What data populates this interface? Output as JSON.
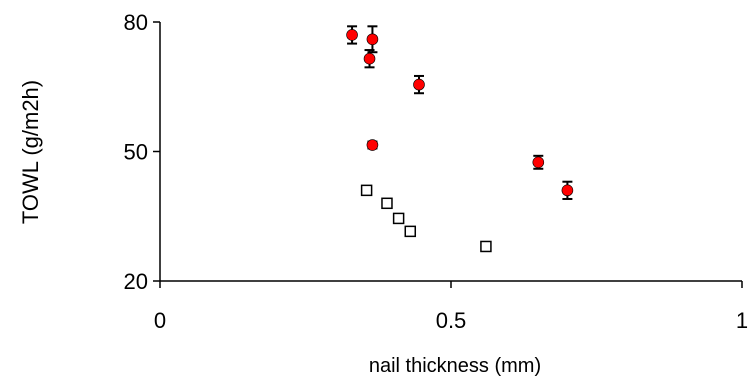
{
  "chart_data": {
    "type": "scatter",
    "title": "",
    "xlabel": "nail thickness (mm)",
    "ylabel": "TOWL (g/m2h)",
    "xlim": [
      0,
      1
    ],
    "ylim": [
      20,
      80
    ],
    "x_ticks": [
      0,
      0.5,
      1
    ],
    "x_tick_labels": [
      "0",
      "0.5",
      "1"
    ],
    "y_ticks": [
      20,
      50,
      80
    ],
    "y_tick_labels": [
      "20",
      "50",
      "80"
    ],
    "grid": false,
    "legend": "none",
    "series": [
      {
        "marker": "circle",
        "color": "#ff0000",
        "points": [
          {
            "x": 0.33,
            "y": 77.0,
            "err": 2.0
          },
          {
            "x": 0.36,
            "y": 71.5,
            "err": 2.0
          },
          {
            "x": 0.365,
            "y": 76.0,
            "err": 3.0
          },
          {
            "x": 0.365,
            "y": 51.5,
            "err": 0.8
          },
          {
            "x": 0.445,
            "y": 65.5,
            "err": 2.0
          },
          {
            "x": 0.65,
            "y": 47.5,
            "err": 1.5
          },
          {
            "x": 0.7,
            "y": 41.0,
            "err": 2.0
          }
        ]
      },
      {
        "marker": "square",
        "color": "#ffffff",
        "points": [
          {
            "x": 0.355,
            "y": 41.0,
            "err": 0.8
          },
          {
            "x": 0.39,
            "y": 38.0,
            "err": 0.8
          },
          {
            "x": 0.41,
            "y": 34.5,
            "err": 0.8
          },
          {
            "x": 0.43,
            "y": 31.5,
            "err": 0.8
          },
          {
            "x": 0.56,
            "y": 28.0,
            "err": 0.8
          }
        ]
      }
    ]
  }
}
